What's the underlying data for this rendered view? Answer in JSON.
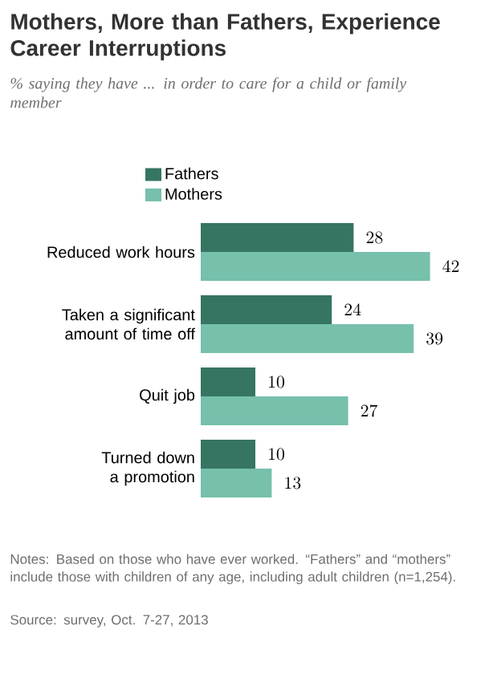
{
  "chart_data": {
    "type": "bar",
    "orientation": "horizontal",
    "title": "Mothers, More than Fathers, Experience Career Interruptions",
    "subtitle": "% saying they have ... in order to care for a child or family member",
    "categories": [
      "Reduced work hours",
      "Taken a significant amount of time off",
      "Quit job",
      "Turned down a promotion"
    ],
    "series": [
      {
        "name": "Fathers",
        "color": "#357562",
        "values": [
          28,
          24,
          10,
          10
        ]
      },
      {
        "name": "Mothers",
        "color": "#76c0ac",
        "values": [
          42,
          39,
          27,
          13
        ]
      }
    ],
    "data_labels": true,
    "legend": "top left",
    "annotations": [
      "Notes: Based on those who have ever worked. “Fathers” and “mothers” include those with children of any age, including adult children (n=1,254).",
      "Source: survey, Oct. 7-27, 2013"
    ]
  }
}
